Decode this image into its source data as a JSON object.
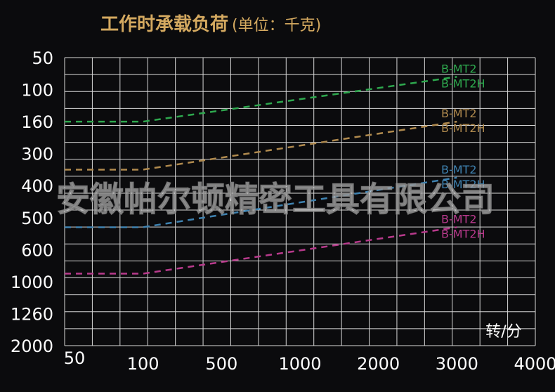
{
  "chart_data": {
    "type": "line",
    "title": "工作时承载负荷",
    "title_unit": "(单位：千克)",
    "x_unit_label": "转/分",
    "x_ticks": [
      "50",
      "100",
      "500",
      "1000",
      "2000",
      "3000",
      "4000"
    ],
    "y_ticks": [
      "50",
      "100",
      "160",
      "300",
      "400",
      "500",
      "600",
      "1000",
      "1260",
      "2000"
    ],
    "y_axis_order": "top-to-bottom",
    "grid": true,
    "line_style": "dashed",
    "series": [
      {
        "labels": [
          "B-MT2",
          "B-MT2H"
        ],
        "color": "#2ea84e",
        "points": [
          {
            "x": 50,
            "y": 160
          },
          {
            "x": 100,
            "y": 160
          },
          {
            "x": 3000,
            "y": 80
          }
        ]
      },
      {
        "labels": [
          "B-MT2",
          "B-MT2H"
        ],
        "color": "#b08a4e",
        "points": [
          {
            "x": 50,
            "y": 350
          },
          {
            "x": 100,
            "y": 350
          },
          {
            "x": 3000,
            "y": 160
          }
        ]
      },
      {
        "labels": [
          "B-MT2",
          "B-MT2H"
        ],
        "color": "#3f82b0",
        "points": [
          {
            "x": 50,
            "y": 530
          },
          {
            "x": 100,
            "y": 530
          },
          {
            "x": 3000,
            "y": 375
          }
        ]
      },
      {
        "labels": [
          "B-MT2",
          "B-MT2H"
        ],
        "color": "#b83a8c",
        "points": [
          {
            "x": 50,
            "y": 900
          },
          {
            "x": 100,
            "y": 900
          },
          {
            "x": 3000,
            "y": 530
          }
        ]
      }
    ]
  },
  "watermark": "安徽帕尔顿精密工具有限公司",
  "colors": {
    "background": "#0b0b0d",
    "grid": "#d8d8d8",
    "title": "#d4a960",
    "axis_text": "#ffffff"
  }
}
